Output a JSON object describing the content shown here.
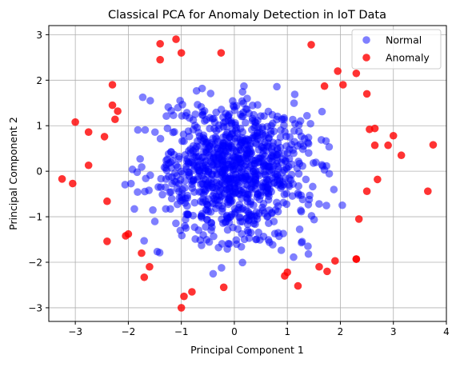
{
  "chart_data": {
    "type": "scatter",
    "title": "Classical PCA for Anomaly Detection in IoT Data",
    "xlabel": "Principal Component 1",
    "ylabel": "Principal Component 2",
    "xlim": [
      -3.5,
      4.0
    ],
    "ylim": [
      -3.3,
      3.2
    ],
    "xticks": [
      -3,
      -2,
      -1,
      0,
      1,
      2,
      3,
      4
    ],
    "yticks": [
      -3,
      -2,
      -1,
      0,
      1,
      2,
      3
    ],
    "xtick_labels": [
      "−3",
      "−2",
      "−1",
      "0",
      "1",
      "2",
      "3",
      "4"
    ],
    "ytick_labels": [
      "−3",
      "−2",
      "−1",
      "0",
      "1",
      "2",
      "3"
    ],
    "grid": true,
    "legend_position": "upper right",
    "colors": {
      "normal": "#0000ff",
      "anomaly": "#ff0000"
    },
    "series": [
      {
        "name": "Normal",
        "distribution": "bivariate normal cloud, mean (0, 0), std ≈ 0.75, |x|,|y| ≲ 2.4",
        "count": 950
      },
      {
        "name": "Anomaly",
        "points": [
          [
            -1.1,
            2.9
          ],
          [
            -1.4,
            2.8
          ],
          [
            -1.0,
            2.6
          ],
          [
            -1.4,
            2.45
          ],
          [
            -0.25,
            2.6
          ],
          [
            1.45,
            2.78
          ],
          [
            1.95,
            2.2
          ],
          [
            2.3,
            2.15
          ],
          [
            2.05,
            1.9
          ],
          [
            2.5,
            1.7
          ],
          [
            1.7,
            1.87
          ],
          [
            -2.3,
            1.9
          ],
          [
            -2.3,
            1.45
          ],
          [
            -2.2,
            1.32
          ],
          [
            -2.25,
            1.14
          ],
          [
            -3.0,
            1.08
          ],
          [
            -2.75,
            0.86
          ],
          [
            -2.45,
            0.76
          ],
          [
            -2.75,
            0.13
          ],
          [
            2.55,
            0.92
          ],
          [
            2.65,
            0.94
          ],
          [
            2.65,
            0.57
          ],
          [
            2.9,
            0.57
          ],
          [
            3.0,
            0.78
          ],
          [
            3.15,
            0.35
          ],
          [
            3.75,
            0.58
          ],
          [
            2.7,
            -0.18
          ],
          [
            2.5,
            -0.44
          ],
          [
            3.65,
            -0.44
          ],
          [
            2.35,
            -1.05
          ],
          [
            -3.25,
            -0.17
          ],
          [
            -3.05,
            -0.27
          ],
          [
            -2.4,
            -0.66
          ],
          [
            -2.0,
            -1.38
          ],
          [
            -2.05,
            -1.42
          ],
          [
            -2.4,
            -1.54
          ],
          [
            -1.75,
            -1.8
          ],
          [
            -1.6,
            -2.1
          ],
          [
            -1.7,
            -2.33
          ],
          [
            -0.95,
            -2.75
          ],
          [
            -0.8,
            -2.65
          ],
          [
            -1.0,
            -3.0
          ],
          [
            -0.2,
            -2.55
          ],
          [
            0.95,
            -2.3
          ],
          [
            1.0,
            -2.22
          ],
          [
            1.2,
            -2.52
          ],
          [
            1.6,
            -2.1
          ],
          [
            1.75,
            -2.2
          ],
          [
            1.9,
            -1.97
          ],
          [
            2.3,
            -1.93
          ],
          [
            2.3,
            -1.93
          ]
        ]
      }
    ]
  }
}
